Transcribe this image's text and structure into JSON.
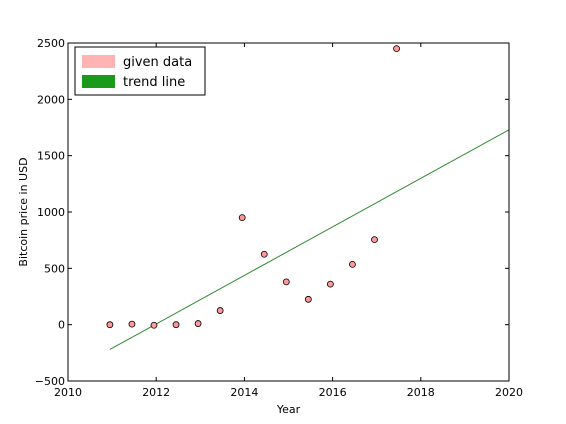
{
  "chart_data": {
    "type": "scatter",
    "xlabel": "Year",
    "ylabel": "Bitcoin price in USD",
    "xlim": [
      2010,
      2020
    ],
    "ylim": [
      -500,
      2500
    ],
    "xticks": [
      "2010",
      "2012",
      "2014",
      "2016",
      "2018",
      "2020"
    ],
    "yticks": [
      "−500",
      "0",
      "500",
      "1000",
      "1500",
      "2000",
      "2500"
    ],
    "grid": false,
    "legend_position": "top-left",
    "series": [
      {
        "name": "given data",
        "kind": "scatter",
        "color": "#ff9999",
        "legend_color": "#ffb3b3",
        "x": [
          2010.95,
          2011.45,
          2011.95,
          2012.45,
          2012.95,
          2013.45,
          2013.95,
          2014.45,
          2014.95,
          2015.45,
          2015.95,
          2016.45,
          2016.95,
          2017.45
        ],
        "y": [
          0,
          5,
          -5,
          0,
          10,
          125,
          950,
          625,
          380,
          225,
          360,
          535,
          755,
          2450
        ]
      },
      {
        "name": "trend line",
        "kind": "line",
        "color": "#2e8b2e",
        "legend_color": "#1a9a1a",
        "x": [
          2010.95,
          2020
        ],
        "y": [
          -220,
          1730
        ]
      }
    ]
  }
}
